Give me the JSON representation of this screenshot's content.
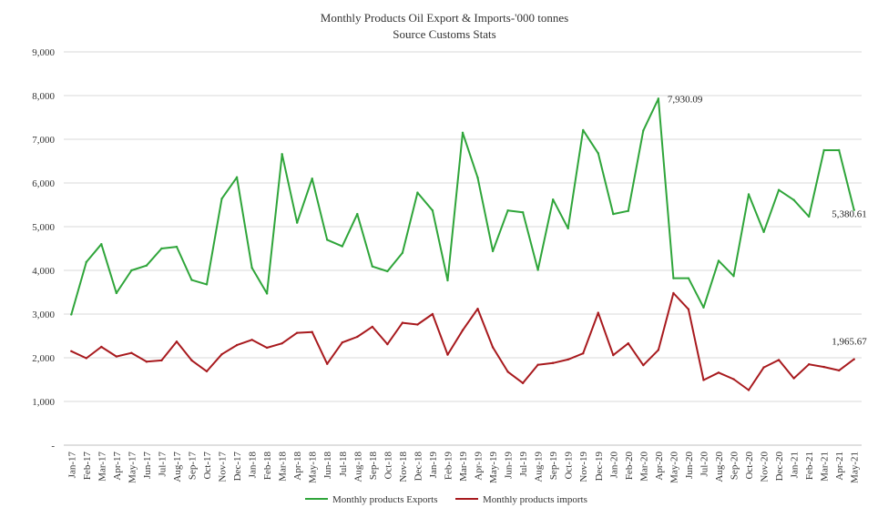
{
  "chart_data": {
    "type": "line",
    "title": "Monthly Products Oil Export & Imports-'000 tonnes",
    "subtitle": "Source Customs Stats",
    "ylim": [
      0,
      9000
    ],
    "yticks": [
      {
        "value": 0,
        "label": "-"
      },
      {
        "value": 1000,
        "label": "1,000"
      },
      {
        "value": 2000,
        "label": "2,000"
      },
      {
        "value": 3000,
        "label": "3,000"
      },
      {
        "value": 4000,
        "label": "4,000"
      },
      {
        "value": 5000,
        "label": "5,000"
      },
      {
        "value": 6000,
        "label": "6,000"
      },
      {
        "value": 7000,
        "label": "7,000"
      },
      {
        "value": 8000,
        "label": "8,000"
      },
      {
        "value": 9000,
        "label": "9,000"
      }
    ],
    "grid": true,
    "legend_position": "bottom-center",
    "categories": [
      "Jan-17",
      "Feb-17",
      "Mar-17",
      "Apr-17",
      "May-17",
      "Jun-17",
      "Jul-17",
      "Aug-17",
      "Sep-17",
      "Oct-17",
      "Nov-17",
      "Dec-17",
      "Jan-18",
      "Feb-18",
      "Mar-18",
      "Apr-18",
      "May-18",
      "Jun-18",
      "Jul-18",
      "Aug-18",
      "Sep-18",
      "Oct-18",
      "Nov-18",
      "Dec-18",
      "Jan-19",
      "Feb-19",
      "Mar-19",
      "Apr-19",
      "May-19",
      "Jun-19",
      "Jul-19",
      "Aug-19",
      "Sep-19",
      "Oct-19",
      "Nov-19",
      "Dec-19",
      "Jan-20",
      "Feb-20",
      "Mar-20",
      "Apr-20",
      "May-20",
      "Jun-20",
      "Jul-20",
      "Aug-20",
      "Sep-20",
      "Oct-20",
      "Nov-20",
      "Dec-20",
      "Jan-21",
      "Feb-21",
      "Mar-21",
      "Apr-21",
      "May-21"
    ],
    "series": [
      {
        "name": "Monthly products Exports",
        "color": "#2fa53a",
        "values": [
          2990,
          4190,
          4600,
          3480,
          4000,
          4110,
          4500,
          4540,
          3780,
          3680,
          5640,
          6130,
          4060,
          3470,
          6660,
          5090,
          6100,
          4700,
          4550,
          5290,
          4090,
          3980,
          4400,
          5780,
          5370,
          3770,
          7150,
          6120,
          4440,
          5370,
          5330,
          4010,
          5620,
          4960,
          7210,
          6680,
          5290,
          5360,
          7200,
          7930.09,
          3820,
          3820,
          3150,
          4220,
          3870,
          5740,
          4880,
          5840,
          5610,
          5230,
          6750,
          6750,
          5380.61
        ]
      },
      {
        "name": "Monthly products imports",
        "color": "#a81a1e",
        "values": [
          2150,
          1990,
          2250,
          2030,
          2110,
          1910,
          1940,
          2370,
          1940,
          1690,
          2080,
          2290,
          2410,
          2230,
          2330,
          2570,
          2590,
          1860,
          2350,
          2480,
          2710,
          2310,
          2800,
          2760,
          3000,
          2070,
          2630,
          3120,
          2240,
          1680,
          1420,
          1840,
          1880,
          1960,
          2100,
          3030,
          2060,
          2330,
          1830,
          2180,
          3480,
          3110,
          1490,
          1660,
          1510,
          1260,
          1780,
          1950,
          1530,
          1850,
          1790,
          1710,
          1965.67
        ]
      }
    ],
    "annotations": [
      {
        "series": 0,
        "index": 39,
        "label": "7,930.09"
      },
      {
        "series": 0,
        "index": 52,
        "label": "5,380.61"
      },
      {
        "series": 1,
        "index": 52,
        "label": "1,965.67"
      }
    ]
  }
}
